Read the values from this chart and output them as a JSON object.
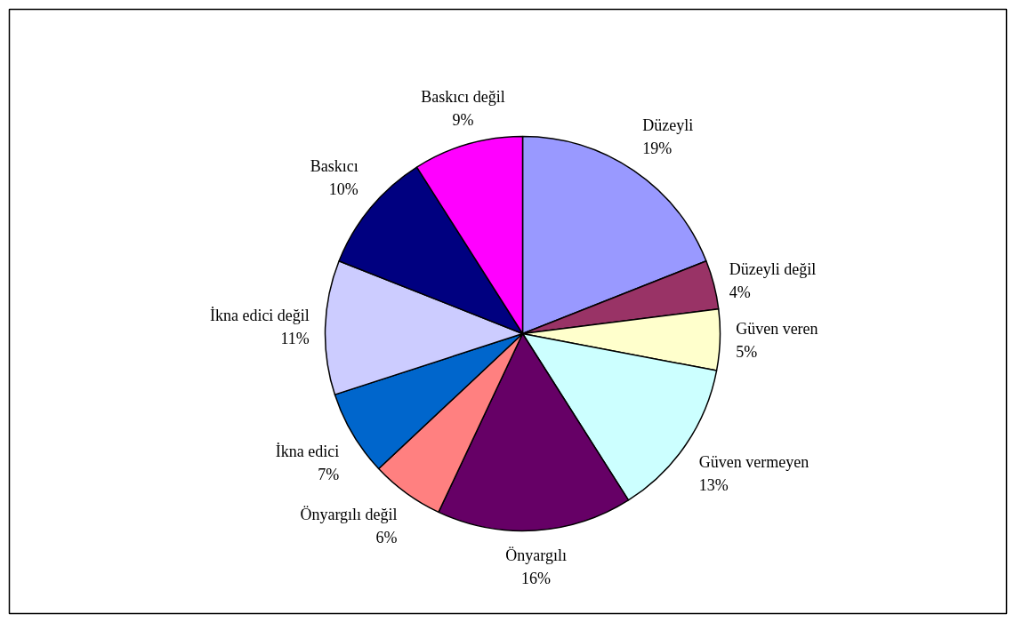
{
  "chart_data": {
    "type": "pie",
    "categories": [
      "Düzeyli",
      "Düzeyli değil",
      "Güven veren",
      "Güven vermeyen",
      "Önyargılı",
      "Önyargılı değil",
      "İkna edici",
      "İkna edici değil",
      "Baskıcı",
      "Baskıcı değil"
    ],
    "values": [
      19,
      4,
      5,
      13,
      16,
      6,
      7,
      11,
      10,
      9
    ],
    "value_labels": [
      "19%",
      "4%",
      "5%",
      "13%",
      "16%",
      "6%",
      "7%",
      "11%",
      "10%",
      "9%"
    ],
    "colors": [
      "#9999ff",
      "#993366",
      "#ffffcc",
      "#ccffff",
      "#660066",
      "#ff8080",
      "#0066cc",
      "#ccccff",
      "#000080",
      "#ff00ff"
    ]
  }
}
